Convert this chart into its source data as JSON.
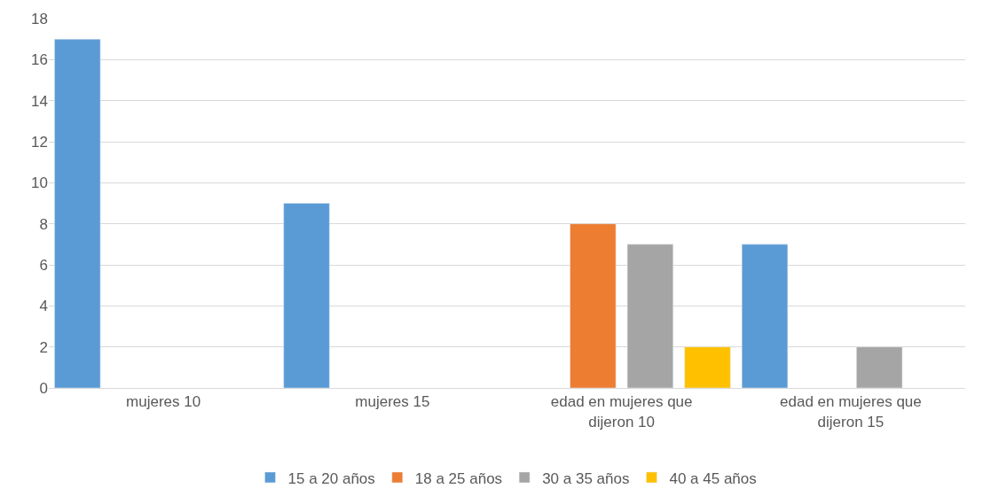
{
  "chart_data": {
    "type": "bar",
    "categories": [
      "mujeres 10",
      "mujeres 15",
      "edad en mujeres que dijeron 10",
      "edad en mujeres que dijeron 15"
    ],
    "series": [
      {
        "name": "15 a 20 años",
        "color": "#5b9bd5",
        "values": [
          17,
          9,
          null,
          7
        ]
      },
      {
        "name": "18 a 25 años",
        "color": "#ed7d31",
        "values": [
          null,
          null,
          8,
          null
        ]
      },
      {
        "name": "30 a 35 años",
        "color": "#a5a5a5",
        "values": [
          null,
          null,
          7,
          2
        ]
      },
      {
        "name": "40 a 45 años",
        "color": "#ffc000",
        "values": [
          null,
          null,
          2,
          null
        ]
      }
    ],
    "ylim": [
      0,
      18
    ],
    "yticks": [
      0,
      2,
      4,
      6,
      8,
      10,
      12,
      14,
      16,
      18
    ],
    "grid": "y",
    "legend": "bottom"
  }
}
